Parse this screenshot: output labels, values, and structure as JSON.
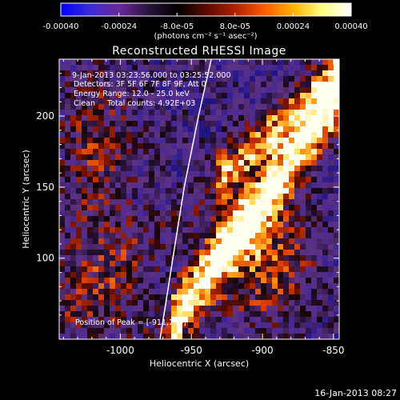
{
  "colorbar": {
    "tick_labels": [
      "-0.00040",
      "-0.00024",
      "-8.0e-05",
      "8.0e-05",
      "0.00024",
      "0.00040"
    ],
    "unit_label": "(photons cm⁻² s⁻¹ asec⁻²)",
    "colormap": [
      "#0000ff",
      "#3a2bd6",
      "#6a2a9a",
      "#2a1440",
      "#000000",
      "#5a0a00",
      "#b02000",
      "#ff5a00",
      "#ffb000",
      "#ffff80",
      "#ffffff"
    ]
  },
  "title": "Reconstructed RHESSI Image",
  "annotations": {
    "time_range": "9-Jan-2013 03:23:56.000 to 03:25:52.000",
    "detectors": "Detectors: 3F 5F 6F 7F 8F 9F, Att 0",
    "energy": "Energy Range: 12.0 - 25.0 keV",
    "clean": "Clean     Total counts: 4.92E+03",
    "peak": "Position of Peak = [-911,100]"
  },
  "axes": {
    "xlabel": "Heliocentric X (arcsec)",
    "ylabel": "Heliocentric Y (arcsec)",
    "xticks": [
      -1000,
      -950,
      -900,
      -850
    ],
    "yticks": [
      100,
      150,
      200
    ],
    "xtick_labels": [
      "-1000",
      "-950",
      "-900",
      "-850"
    ],
    "ytick_labels": [
      "100",
      "150",
      "200"
    ],
    "xlim": [
      -1043,
      -846
    ],
    "ylim": [
      43,
      240
    ]
  },
  "solar_limb": {
    "color": "#ffffff",
    "description_points": [
      [
        -972,
        43
      ],
      [
        -963,
        100
      ],
      [
        -955,
        150
      ],
      [
        -945,
        200
      ],
      [
        -936,
        240
      ]
    ]
  },
  "footer": {
    "date": "16-Jan-2013 08:27"
  },
  "chart_data": {
    "type": "heatmap",
    "title": "Reconstructed RHESSI Image",
    "xlabel": "Heliocentric X (arcsec)",
    "ylabel": "Heliocentric Y (arcsec)",
    "xlim": [
      -1043,
      -846
    ],
    "ylim": [
      43,
      240
    ],
    "color_range": [
      -0.0004,
      0.0004
    ],
    "peak_position": [
      -911,
      100
    ]
  }
}
